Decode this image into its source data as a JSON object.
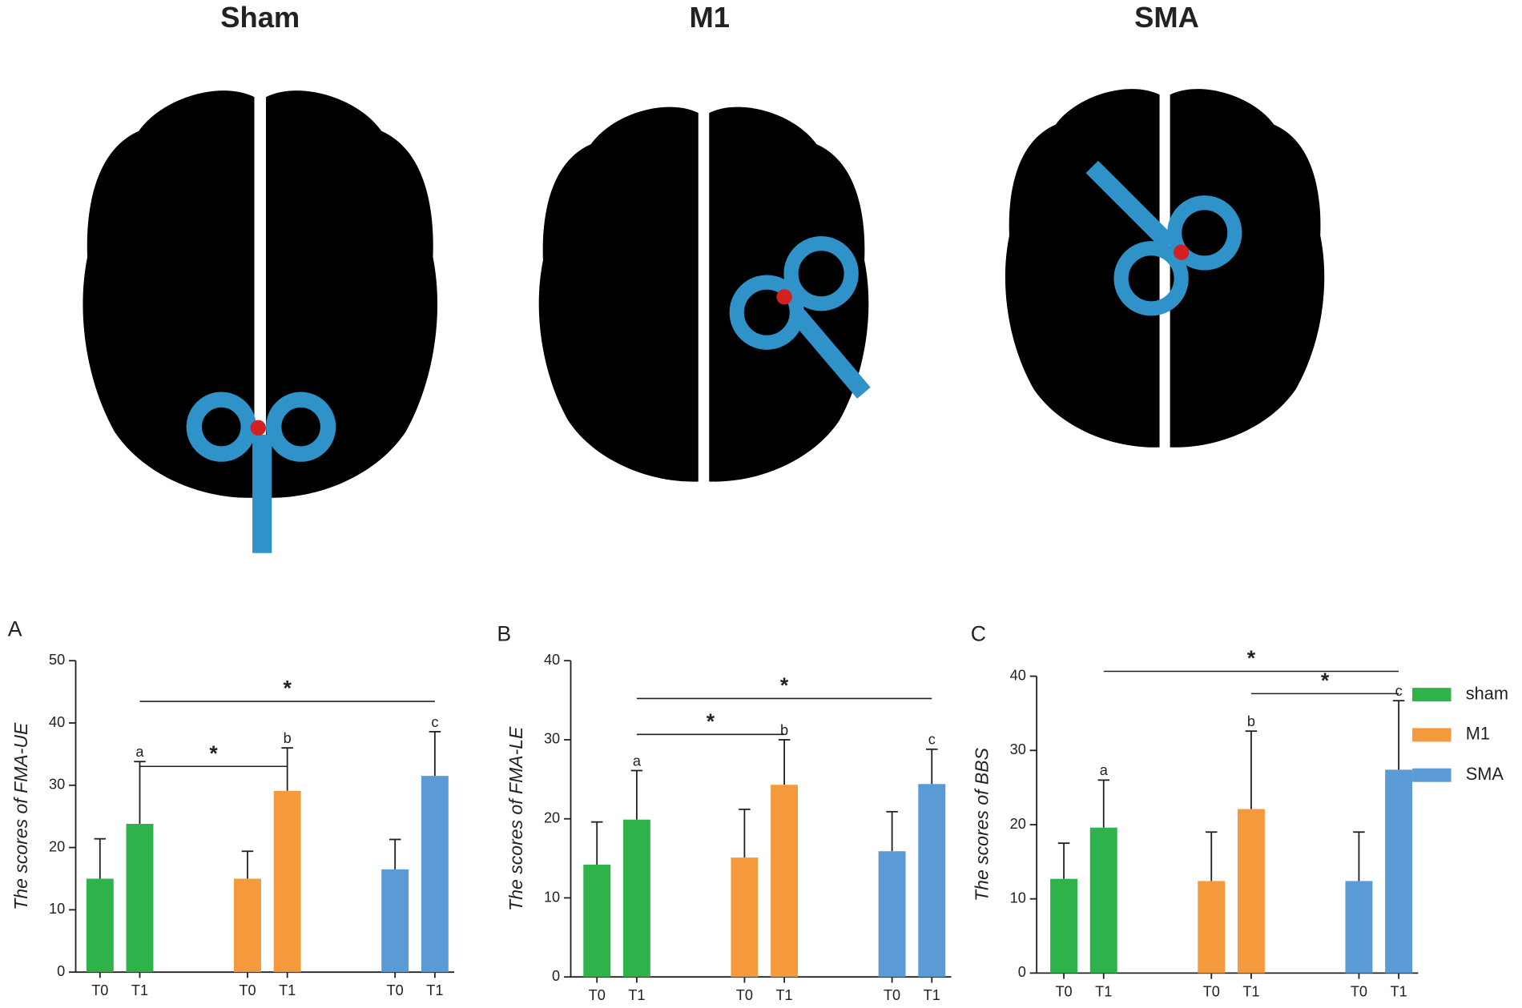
{
  "brain_titles": [
    "Sham",
    "M1",
    "SMA"
  ],
  "chart_data": [
    {
      "type": "bar",
      "panel": "A",
      "ylabel": "The scores of FMA-UE",
      "categories": [
        "T0",
        "T1",
        "T0",
        "T1",
        "T0",
        "T1"
      ],
      "series": [
        {
          "name": "sham",
          "color": "#2db34a",
          "values": [
            15,
            23.8,
            null,
            null,
            null,
            null
          ],
          "errors": [
            6.4,
            10,
            null,
            null,
            null,
            null
          ]
        },
        {
          "name": "M1",
          "color": "#f59a3c",
          "values": [
            null,
            null,
            15,
            29.1,
            null,
            null
          ],
          "errors": [
            null,
            null,
            4.4,
            6.9,
            null,
            null
          ]
        },
        {
          "name": "SMA",
          "color": "#5b9bd5",
          "values": [
            null,
            null,
            null,
            null,
            16.5,
            31.5
          ],
          "errors": [
            null,
            null,
            null,
            null,
            4.8,
            7.1
          ]
        }
      ],
      "ylim": [
        0,
        50
      ],
      "yticks": [
        0,
        10,
        20,
        30,
        40,
        50
      ],
      "annotations": [
        {
          "index": 1,
          "label": "a"
        },
        {
          "index": 3,
          "label": "b"
        },
        {
          "index": 5,
          "label": "c"
        }
      ],
      "brackets": [
        {
          "from": 1,
          "to": 5,
          "label": "*"
        },
        {
          "from": 1,
          "to": 3,
          "label": "*"
        }
      ]
    },
    {
      "type": "bar",
      "panel": "B",
      "ylabel": "The scores of FMA-LE",
      "categories": [
        "T0",
        "T1",
        "T0",
        "T1",
        "T0",
        "T1"
      ],
      "series": [
        {
          "color": "#2db34a",
          "values": [
            14.2,
            19.9,
            null,
            null,
            null,
            null
          ],
          "errors": [
            5.4,
            6.2,
            null,
            null,
            null,
            null
          ]
        },
        {
          "color": "#f59a3c",
          "values": [
            null,
            null,
            15.1,
            24.3,
            null,
            null
          ],
          "errors": [
            null,
            null,
            6.1,
            5.7,
            null,
            null
          ]
        },
        {
          "color": "#5b9bd5",
          "values": [
            null,
            null,
            null,
            null,
            15.9,
            24.4
          ],
          "errors": [
            null,
            null,
            null,
            null,
            5,
            4.4
          ]
        }
      ],
      "ylim": [
        0,
        40
      ],
      "yticks": [
        0,
        10,
        20,
        30,
        40
      ],
      "annotations": [
        {
          "index": 1,
          "label": "a"
        },
        {
          "index": 3,
          "label": "b"
        },
        {
          "index": 5,
          "label": "c"
        }
      ],
      "brackets": [
        {
          "from": 1,
          "to": 5,
          "label": "*"
        },
        {
          "from": 1,
          "to": 3,
          "label": "*"
        }
      ]
    },
    {
      "type": "bar",
      "panel": "C",
      "ylabel": "The scores of BBS",
      "categories": [
        "T0",
        "T1",
        "T0",
        "T1",
        "T0",
        "T1"
      ],
      "series": [
        {
          "color": "#2db34a",
          "values": [
            12.7,
            19.6,
            null,
            null,
            null,
            null
          ],
          "errors": [
            4.8,
            6.4,
            null,
            null,
            null,
            null
          ]
        },
        {
          "color": "#f59a3c",
          "values": [
            null,
            null,
            12.4,
            22.1,
            null,
            null
          ],
          "errors": [
            null,
            null,
            6.6,
            10.5,
            null,
            null
          ]
        },
        {
          "color": "#5b9bd5",
          "values": [
            null,
            null,
            null,
            null,
            12.4,
            27.4
          ],
          "errors": [
            null,
            null,
            null,
            null,
            6.6,
            9.3
          ]
        }
      ],
      "ylim": [
        0,
        40
      ],
      "yticks": [
        0,
        10,
        20,
        30,
        40
      ],
      "annotations": [
        {
          "index": 1,
          "label": "a"
        },
        {
          "index": 3,
          "label": "b"
        },
        {
          "index": 5,
          "label": "c"
        }
      ],
      "brackets": [
        {
          "from": 1,
          "to": 5,
          "label": "*"
        },
        {
          "from": 3,
          "to": 5,
          "label": "*"
        }
      ]
    }
  ]
}
